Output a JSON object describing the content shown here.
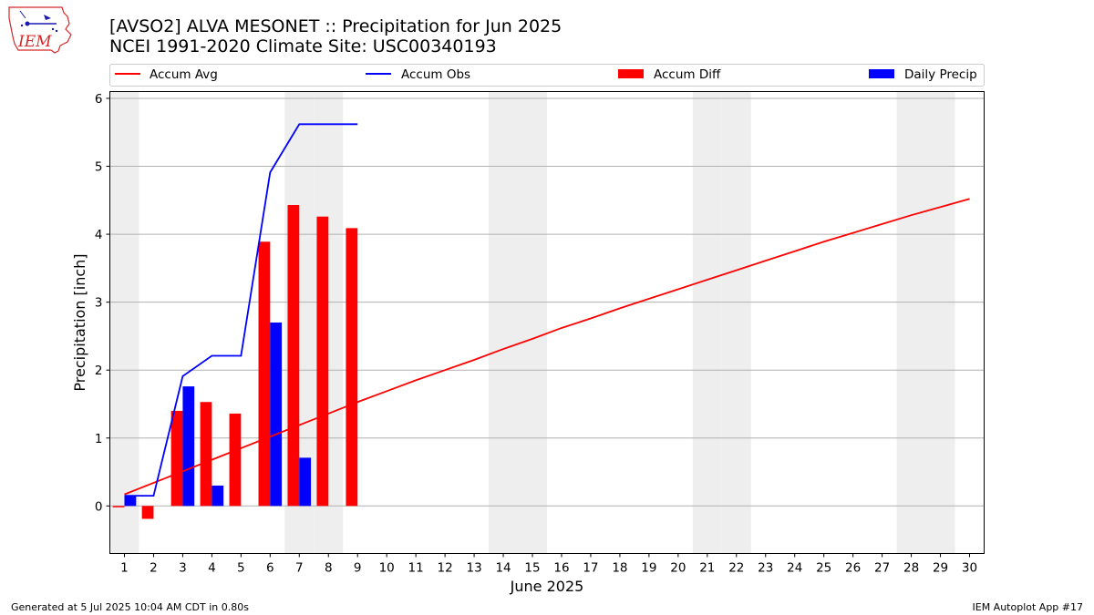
{
  "header": {
    "title_line1": "[AVSO2] ALVA MESONET :: Precipitation for Jun 2025",
    "title_line2": "NCEI 1991-2020 Climate Site: USC00340193"
  },
  "logo": {
    "text": "IEM",
    "icon": "iowa-state-outline-logo-icon"
  },
  "footer": {
    "generated": "Generated at 5 Jul 2025 10:04 AM CDT in 0.80s",
    "app": "IEM Autoplot App #17"
  },
  "colors": {
    "accum_avg": "#ff0000",
    "accum_obs": "#0000ff",
    "accum_diff": "#ff0000",
    "daily_precip": "#0000ff",
    "weekend_band": "#eeeeee",
    "grid": "#b0b0b0"
  },
  "chart_data": {
    "type": "bar",
    "xlabel": "June 2025",
    "ylabel": "Precipitation [inch]",
    "x": [
      1,
      2,
      3,
      4,
      5,
      6,
      7,
      8,
      9,
      10,
      11,
      12,
      13,
      14,
      15,
      16,
      17,
      18,
      19,
      20,
      21,
      22,
      23,
      24,
      25,
      26,
      27,
      28,
      29,
      30
    ],
    "xlim": [
      0.5,
      30.5
    ],
    "ylim": [
      -0.7,
      6.1
    ],
    "yticks": [
      0,
      1,
      2,
      3,
      4,
      5,
      6
    ],
    "grid": "horizontal",
    "legend_placement": "top",
    "weekend_days": [
      1,
      7,
      8,
      14,
      15,
      21,
      22,
      28,
      29
    ],
    "series": [
      {
        "name": "Accum Avg",
        "kind": "line",
        "x": [
          1,
          2,
          3,
          4,
          5,
          6,
          7,
          8,
          9,
          10,
          11,
          12,
          13,
          14,
          15,
          16,
          17,
          18,
          19,
          20,
          21,
          22,
          23,
          24,
          25,
          26,
          27,
          28,
          29,
          30
        ],
        "values": [
          0.17,
          0.34,
          0.51,
          0.68,
          0.85,
          1.02,
          1.19,
          1.36,
          1.53,
          1.69,
          1.85,
          2.0,
          2.15,
          2.31,
          2.46,
          2.62,
          2.76,
          2.91,
          3.05,
          3.19,
          3.33,
          3.47,
          3.61,
          3.75,
          3.89,
          4.02,
          4.15,
          4.28,
          4.4,
          4.52
        ]
      },
      {
        "name": "Accum Obs",
        "kind": "line",
        "x": [
          1,
          2,
          3,
          4,
          5,
          6,
          7,
          8,
          9
        ],
        "values": [
          0.15,
          0.15,
          1.91,
          2.21,
          2.21,
          4.91,
          5.62,
          5.62,
          5.62
        ]
      },
      {
        "name": "Accum Diff",
        "kind": "bar",
        "x": [
          1,
          2,
          3,
          4,
          5,
          6,
          7,
          8,
          9
        ],
        "values": [
          -0.02,
          -0.19,
          1.4,
          1.53,
          1.36,
          3.89,
          4.43,
          4.26,
          4.09
        ]
      },
      {
        "name": "Daily Precip",
        "kind": "bar",
        "x": [
          1,
          2,
          3,
          4,
          5,
          6,
          7,
          8,
          9
        ],
        "values": [
          0.15,
          0.0,
          1.76,
          0.3,
          0.0,
          2.7,
          0.71,
          0.0,
          0.0
        ]
      }
    ]
  }
}
